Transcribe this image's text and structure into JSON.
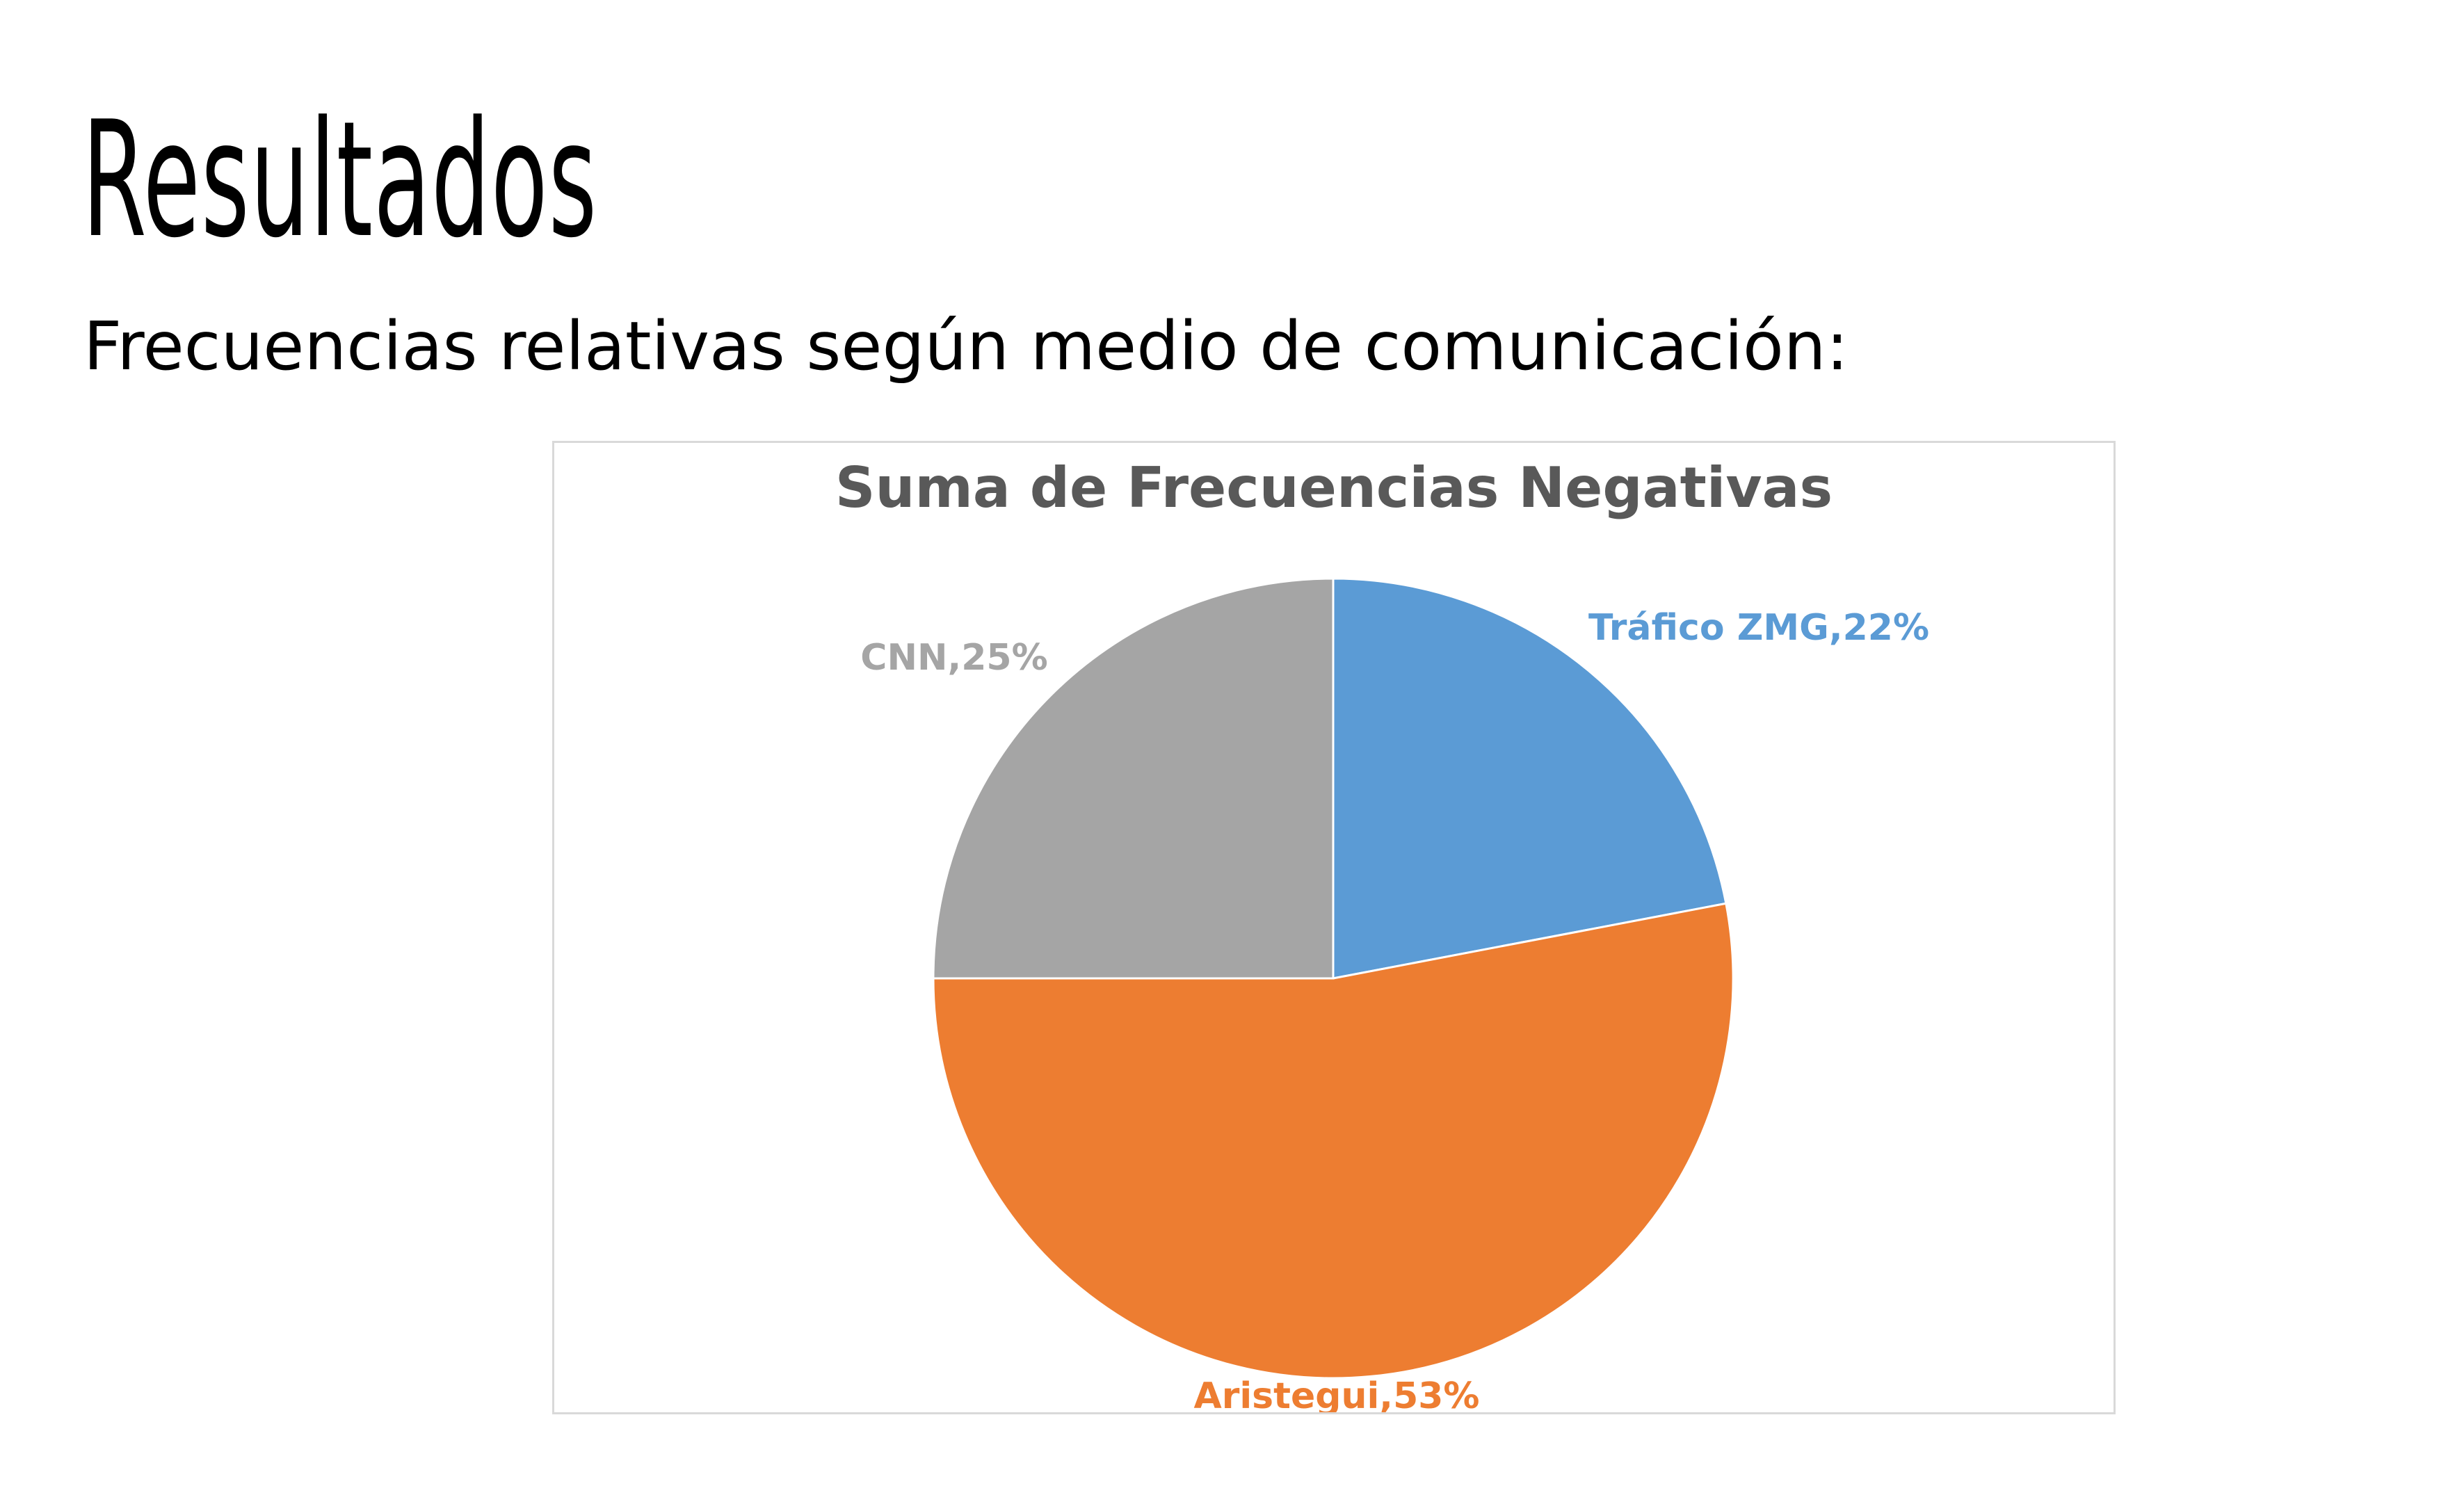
{
  "slide": {
    "title": "Resultados",
    "subtitle": "Frecuencias relativas según medio de comunicación:"
  },
  "chart_data": {
    "type": "pie",
    "title": "Suma de Frecuencias Negativas",
    "legend": "none",
    "slices": [
      {
        "label": "Tráfico ZMG,22%",
        "category": "Tráfico ZMG",
        "value": 22,
        "color": "#5b9bd5",
        "label_color": "#5b9bd5"
      },
      {
        "label": "Aristegui,53%",
        "category": "Aristegui",
        "value": 53,
        "color": "#ed7d31",
        "label_color": "#ed7d31"
      },
      {
        "label": "CNN,25%",
        "category": "CNN",
        "value": 25,
        "color": "#a5a5a5",
        "label_color": "#a5a5a5"
      }
    ]
  }
}
